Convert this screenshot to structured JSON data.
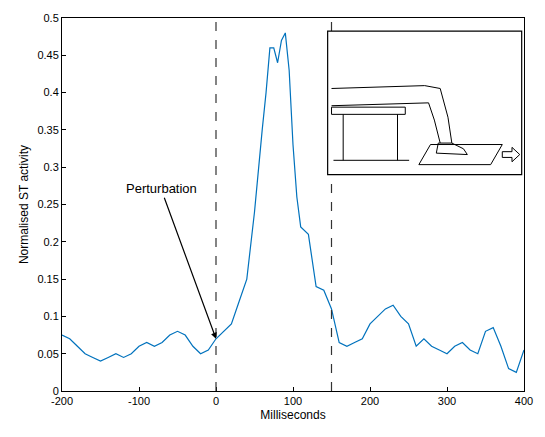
{
  "chart_data": {
    "type": "line",
    "x_label": "Milliseconds",
    "y_label": "Normalised ST activity",
    "color": "#0072bd",
    "x": [
      -200,
      -190,
      -180,
      -170,
      -160,
      -150,
      -140,
      -130,
      -120,
      -110,
      -100,
      -90,
      -80,
      -70,
      -60,
      -50,
      -40,
      -30,
      -20,
      -10,
      0,
      10,
      20,
      30,
      40,
      50,
      55,
      60,
      65,
      70,
      75,
      80,
      85,
      90,
      95,
      100,
      105,
      110,
      120,
      130,
      140,
      150,
      160,
      170,
      180,
      190,
      200,
      210,
      220,
      230,
      240,
      250,
      260,
      270,
      280,
      290,
      300,
      310,
      320,
      330,
      340,
      350,
      360,
      370,
      380,
      390,
      400
    ],
    "values": [
      0.075,
      0.07,
      0.06,
      0.05,
      0.045,
      0.04,
      0.045,
      0.05,
      0.045,
      0.05,
      0.06,
      0.065,
      0.06,
      0.065,
      0.075,
      0.08,
      0.075,
      0.06,
      0.05,
      0.055,
      0.07,
      0.08,
      0.09,
      0.12,
      0.15,
      0.24,
      0.3,
      0.35,
      0.4,
      0.46,
      0.46,
      0.44,
      0.47,
      0.48,
      0.43,
      0.33,
      0.26,
      0.22,
      0.21,
      0.14,
      0.135,
      0.11,
      0.065,
      0.06,
      0.065,
      0.07,
      0.09,
      0.1,
      0.11,
      0.115,
      0.1,
      0.09,
      0.06,
      0.07,
      0.06,
      0.055,
      0.05,
      0.06,
      0.065,
      0.055,
      0.05,
      0.08,
      0.085,
      0.06,
      0.03,
      0.025,
      0.055
    ],
    "xlim": [
      -200,
      400
    ],
    "ylim": [
      0,
      0.5
    ],
    "xticks": [
      -200,
      -100,
      0,
      100,
      200,
      300,
      400
    ],
    "yticks": [
      0,
      0.05,
      0.1,
      0.15,
      0.2,
      0.25,
      0.3,
      0.35,
      0.4,
      0.45,
      0.5
    ],
    "vertical_lines": [
      0,
      150
    ],
    "annotations": [
      {
        "text": "Perturbation",
        "x": 0,
        "y": 0.07
      }
    ]
  }
}
